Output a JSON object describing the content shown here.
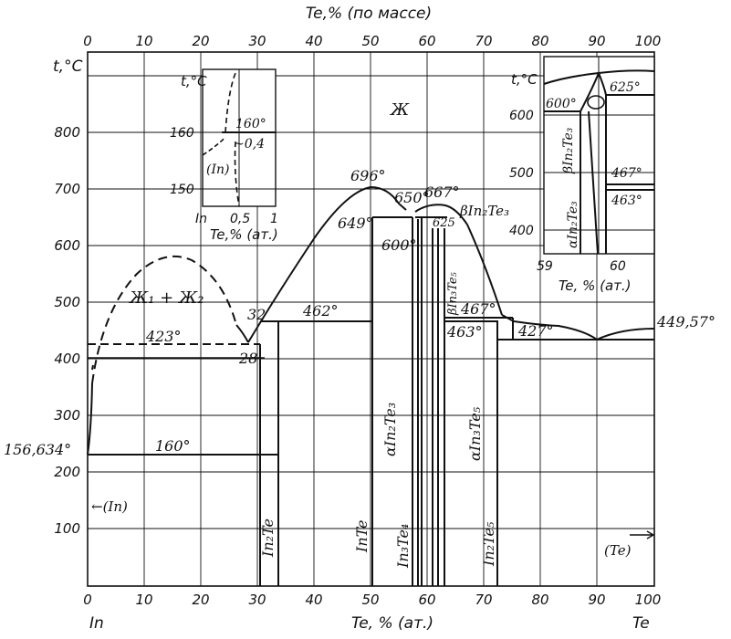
{
  "top_axis": {
    "title": "Te,% (по массе)",
    "ticks": [
      "0",
      "10",
      "20",
      "30",
      "40",
      "50",
      "60",
      "70",
      "80",
      "90",
      "100"
    ]
  },
  "bottom_axis": {
    "title": "Te, % (ат.)",
    "ticks": [
      "0",
      "10",
      "20",
      "30",
      "40",
      "50",
      "60",
      "70",
      "80",
      "90",
      "100"
    ],
    "left_element": "In",
    "right_element": "Te"
  },
  "y_axis": {
    "title": "t,°C",
    "ticks": [
      "100",
      "200",
      "300",
      "400",
      "500",
      "600",
      "700",
      "800"
    ]
  },
  "labels": {
    "liquid": "Ж",
    "two_liquids": "Ж₁ + Ж₂",
    "t696": "696°",
    "t667": "667°",
    "t650": "650°",
    "t649": "649°",
    "t625": "625",
    "t600": "600°",
    "t462": "462°",
    "t467": "467°",
    "t463": "463°",
    "t427": "427°",
    "t423": "423°",
    "t160": "160°",
    "t156": "156,634°",
    "t449": "449,57°",
    "c32": "32",
    "c28": "28",
    "in_side": "←(In)",
    "te_side": "(Te)",
    "phase_In2Te": "In₂Te",
    "phase_InTe": "InTe",
    "phase_In3Te4": "In₃Te₄",
    "phase_In2Te5": "In₂Te₅",
    "phase_aIn2Te3": "αIn₂Te₃",
    "phase_aIn3Te5": "αIn₃Te₅",
    "phase_bIn3Te5": "βIn₃Te₅",
    "phase_bIn2Te3": "βIn₂Te₃"
  },
  "inset_left": {
    "y_title": "t,°C",
    "y_ticks": [
      "160",
      "150"
    ],
    "x_ticks": [
      "In",
      "0,5",
      "1"
    ],
    "x_title": "Te,% (ат.)",
    "label_160": "160°",
    "label_04": "~0,4",
    "label_In": "(In)"
  },
  "inset_right": {
    "y_title": "t,°C",
    "y_ticks": [
      "600",
      "500",
      "400"
    ],
    "x_ticks": [
      "59",
      "60"
    ],
    "x_title": "Te, % (ат.)",
    "label_625": "625°",
    "label_600": "600°",
    "label_467": "467°",
    "label_463": "463°",
    "label_b": "βIn₂Te₃",
    "label_a": "αIn₂Te₃"
  }
}
